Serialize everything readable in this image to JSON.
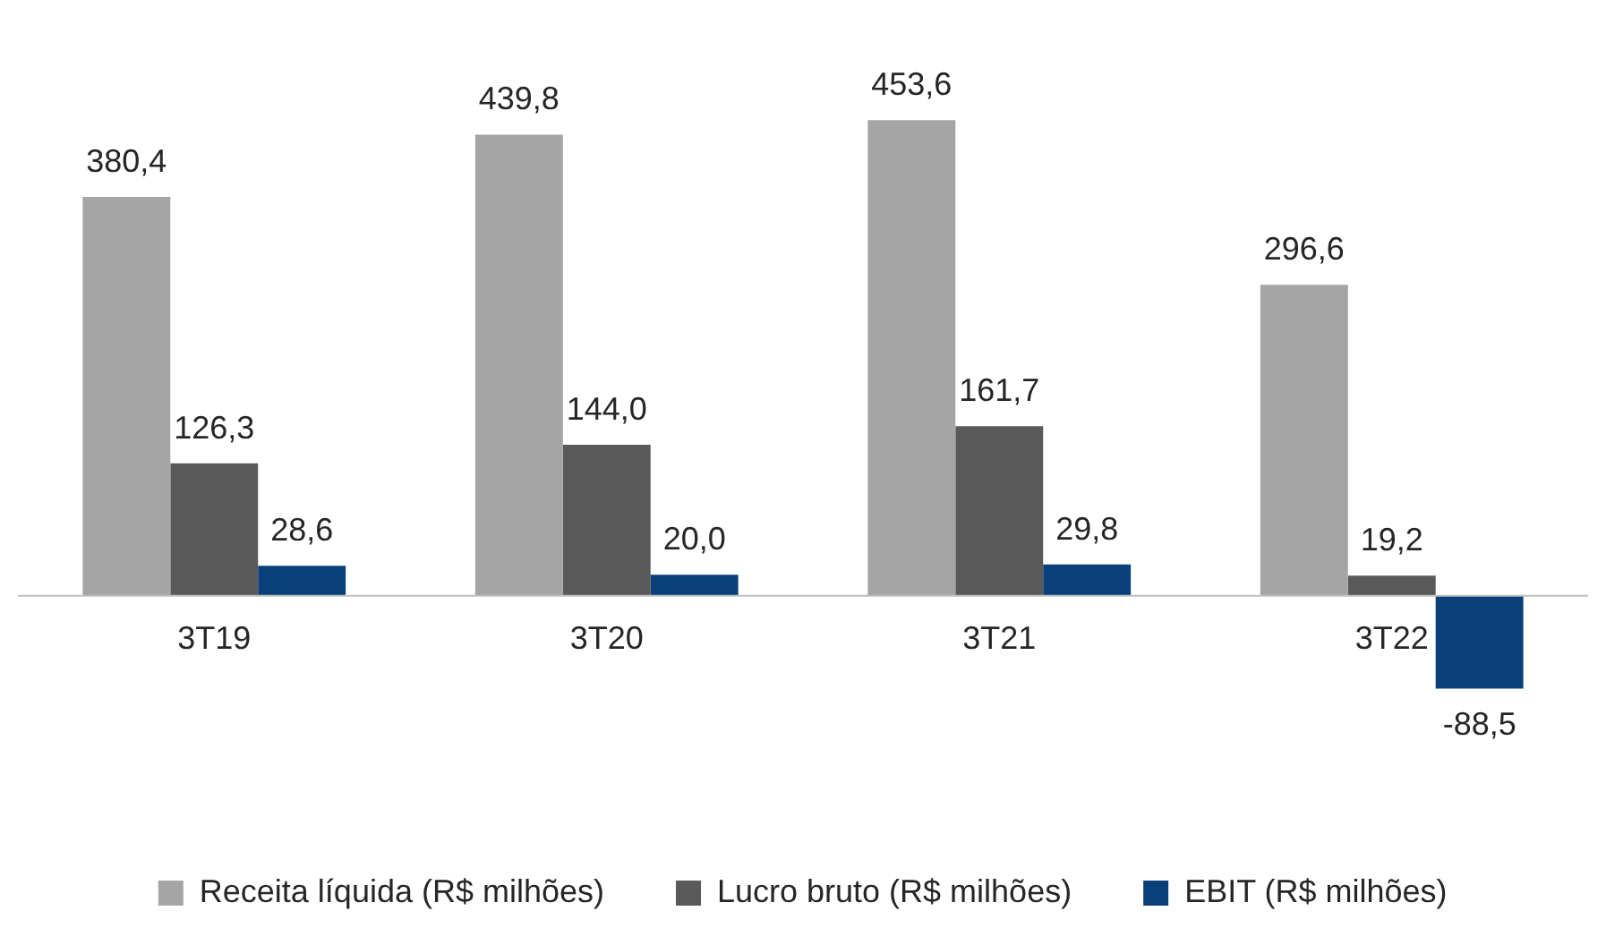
{
  "chart_data": {
    "type": "bar",
    "categories": [
      "3T19",
      "3T20",
      "3T21",
      "3T22"
    ],
    "series": [
      {
        "name": "Receita líquida (R$ milhões)",
        "color": "#a5a5a5",
        "values": [
          380.4,
          439.8,
          453.6,
          296.6
        ],
        "value_labels": [
          "380,4",
          "439,8",
          "453,6",
          "296,6"
        ]
      },
      {
        "name": "Lucro bruto (R$ milhões)",
        "color": "#595959",
        "values": [
          126.3,
          144.0,
          161.7,
          19.2
        ],
        "value_labels": [
          "126,3",
          "144,0",
          "161,7",
          "19,2"
        ]
      },
      {
        "name": "EBIT (R$ milhões)",
        "color": "#0b3f7a",
        "values": [
          28.6,
          20.0,
          29.8,
          -88.5
        ],
        "value_labels": [
          "28,6",
          "20,0",
          "29,8",
          "-88,5"
        ]
      }
    ],
    "legend": "bottom",
    "grid": false,
    "tick_labels": "x"
  }
}
